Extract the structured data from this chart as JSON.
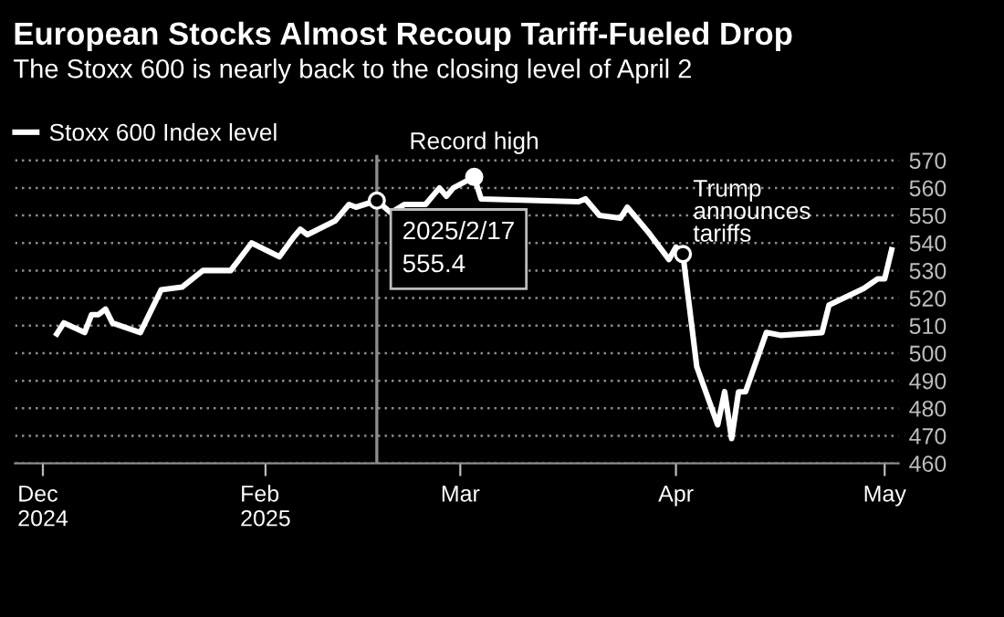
{
  "chart_data": {
    "type": "line",
    "title": "European Stocks Almost Recoup Tariff-Fueled Drop",
    "subtitle": "The Stoxx 600 is nearly back to the closing level of April 2",
    "series": [
      {
        "name": "Stoxx 600 Index level",
        "color": "#ffffff",
        "x": [
          "2025-01-02",
          "2025-01-03",
          "2025-01-06",
          "2025-01-07",
          "2025-01-08",
          "2025-01-09",
          "2025-01-10",
          "2025-01-14",
          "2025-01-17",
          "2025-01-20",
          "2025-01-23",
          "2025-01-27",
          "2025-01-30",
          "2025-02-03",
          "2025-02-05",
          "2025-02-06",
          "2025-02-07",
          "2025-02-11",
          "2025-02-13",
          "2025-02-14",
          "2025-02-17",
          "2025-02-19",
          "2025-02-21",
          "2025-02-24",
          "2025-02-26",
          "2025-02-27",
          "2025-02-28",
          "2025-03-03",
          "2025-03-04",
          "2025-03-18",
          "2025-03-19",
          "2025-03-21",
          "2025-03-24",
          "2025-03-25",
          "2025-03-28",
          "2025-03-31",
          "2025-04-01",
          "2025-04-02",
          "2025-04-04",
          "2025-04-07",
          "2025-04-08",
          "2025-04-09",
          "2025-04-10",
          "2025-04-11",
          "2025-04-14",
          "2025-04-16",
          "2025-04-22",
          "2025-04-23",
          "2025-04-28",
          "2025-04-30",
          "2025-05-01",
          "2025-05-02"
        ],
        "values": [
          507,
          511,
          507.5,
          514,
          514,
          516,
          511,
          507.5,
          523,
          524,
          530,
          530,
          540,
          535,
          542,
          545,
          543,
          548,
          554,
          553,
          555.4,
          551,
          554,
          554,
          560,
          557,
          560,
          564,
          556,
          555,
          556,
          550,
          549,
          553,
          544,
          534,
          538.5,
          536,
          495,
          474,
          486,
          469,
          486,
          486,
          507.5,
          506.5,
          507.5,
          517.5,
          523.5,
          527,
          527,
          537.5
        ]
      }
    ],
    "xlim": [
      "2024-12-27",
      "2025-05-03"
    ],
    "xticks": [
      {
        "value": "2024-12-31",
        "label": "Dec\n2024"
      },
      {
        "value": "2025-02-01",
        "label": "Feb\n2025"
      },
      {
        "value": "2025-03-01",
        "label": "Mar"
      },
      {
        "value": "2025-04-01",
        "label": "Apr"
      },
      {
        "value": "2025-05-01",
        "label": "May"
      }
    ],
    "ylim": [
      460,
      572
    ],
    "yticks": [
      460,
      470,
      480,
      490,
      500,
      510,
      520,
      530,
      540,
      550,
      560,
      570
    ],
    "grid": "y",
    "legend": "top left",
    "marker": "none",
    "line_style": "solid",
    "ref_lines": [
      {
        "axis": "x",
        "value": "2025-02-17",
        "color": "#8c8c8c"
      }
    ],
    "annotations": [
      {
        "text": "Record high",
        "x": "2025-03-03",
        "y": 564
      },
      {
        "text": "2025/2/17\n555.4",
        "x": "2025-02-17",
        "y": 555.4
      },
      {
        "text": "Trump\nannounces\ntariffs",
        "x": "2025-04-02",
        "y": 536
      }
    ]
  }
}
